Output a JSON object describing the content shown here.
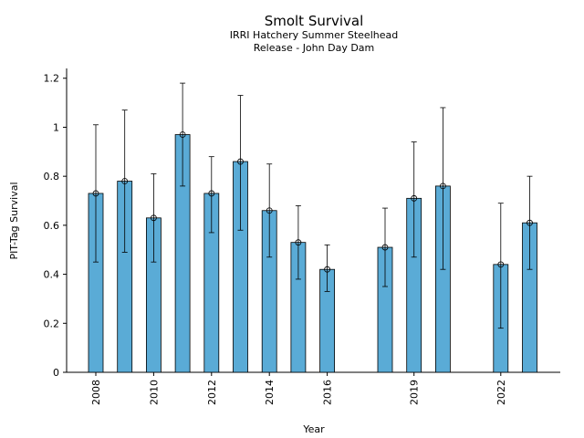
{
  "chart_data": {
    "type": "bar",
    "title": "Smolt Survival",
    "subtitle_lines": [
      "IRRI Hatchery Summer Steelhead",
      "Release - John Day Dam"
    ],
    "xlabel": "Year",
    "ylabel": "PIT-Tag Survival",
    "ylim": [
      0,
      1.24
    ],
    "y_ticks": [
      0,
      0.2,
      0.4,
      0.6,
      0.8,
      1,
      1.2
    ],
    "y_tick_labels": [
      "0",
      "0.2",
      "0.4",
      "0.6",
      "0.8",
      "1",
      "1.2"
    ],
    "x_tick_labels": [
      "2008",
      "2010",
      "2012",
      "2014",
      "2016",
      "2019",
      "2022"
    ],
    "x_tick_years": [
      2008,
      2010,
      2012,
      2014,
      2016,
      2019,
      2022
    ],
    "grid": false,
    "bar_color": "#5aabd6",
    "categories": [
      2008,
      2009,
      2010,
      2011,
      2012,
      2013,
      2014,
      2015,
      2016,
      2018,
      2019,
      2020,
      2022,
      2023
    ],
    "values": [
      0.73,
      0.78,
      0.63,
      0.97,
      0.73,
      0.86,
      0.66,
      0.53,
      0.42,
      0.51,
      0.71,
      0.76,
      0.44,
      0.61
    ],
    "error_low": [
      0.45,
      0.49,
      0.45,
      0.76,
      0.57,
      0.58,
      0.47,
      0.38,
      0.33,
      0.35,
      0.47,
      0.42,
      0.18,
      0.42
    ],
    "error_high": [
      1.01,
      1.07,
      0.81,
      1.18,
      0.88,
      1.13,
      0.85,
      0.68,
      0.52,
      0.67,
      0.94,
      1.08,
      0.69,
      0.8
    ]
  }
}
